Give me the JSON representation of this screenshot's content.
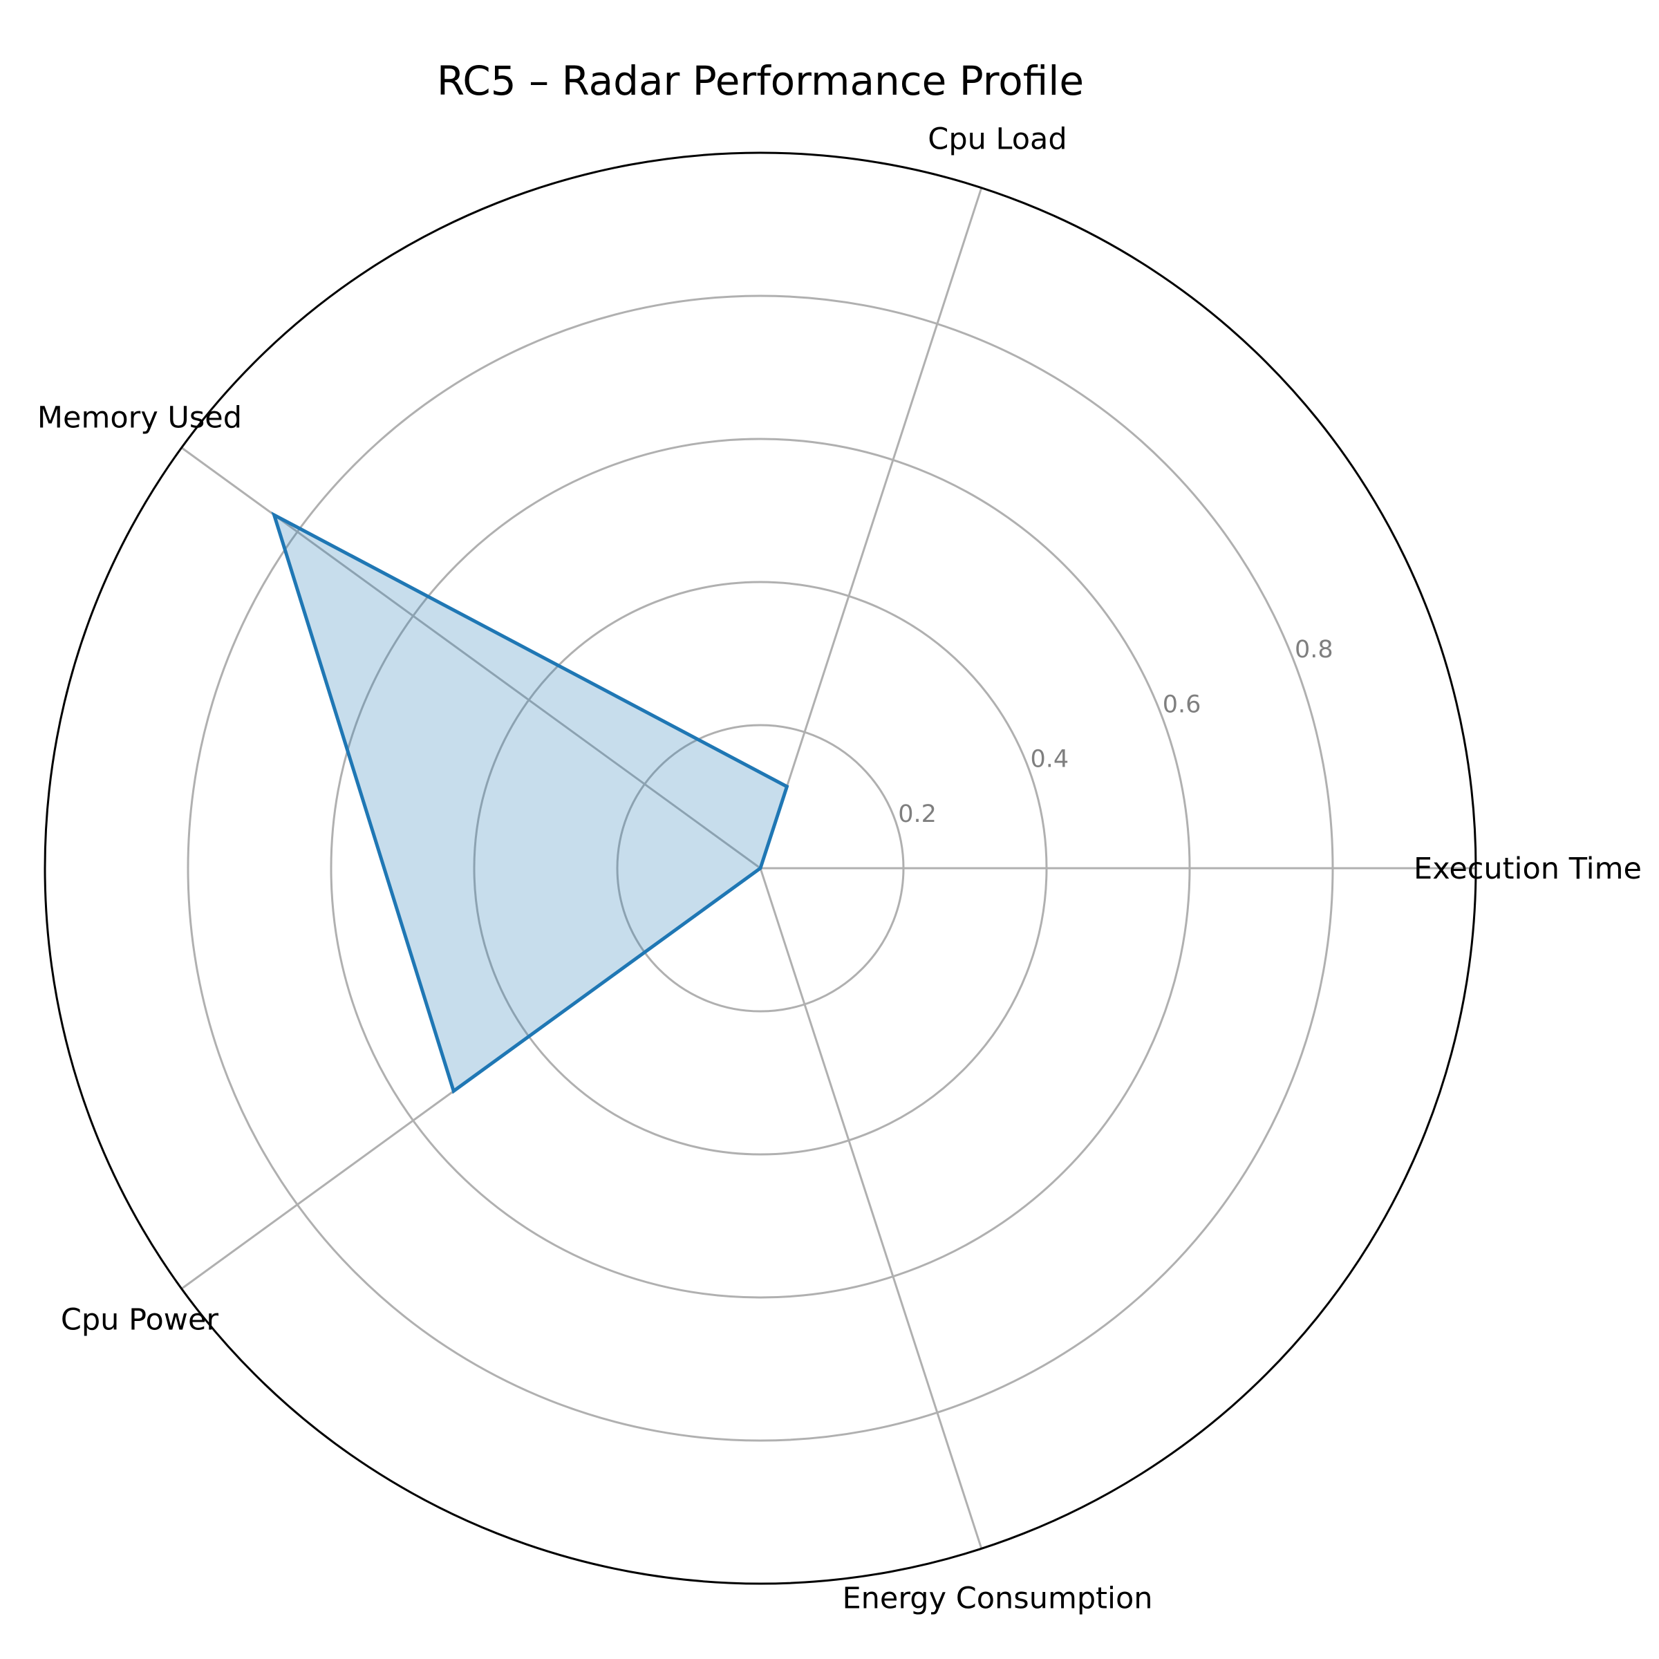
{
  "chart_data": {
    "type": "radar",
    "title": "RC5 – Radar Performance Profile",
    "axes": [
      "Execution Time",
      "Cpu Load",
      "Memory Used",
      "Cpu Power",
      "Energy Consumption"
    ],
    "series": [
      {
        "values": [
          0.0,
          0.12,
          0.84,
          0.53,
          0.0
        ]
      }
    ],
    "rlim": [
      0,
      1
    ],
    "rticks": [
      0.2,
      0.4,
      0.6,
      0.8
    ],
    "rtick_labels": [
      "0.2",
      "0.4",
      "0.6",
      "0.8"
    ],
    "grid": true,
    "colors": {
      "line": "#1f77b4",
      "fill": "#1f77b4",
      "grid": "#b0b0b0",
      "tick_label": "#7f7f7f"
    }
  }
}
